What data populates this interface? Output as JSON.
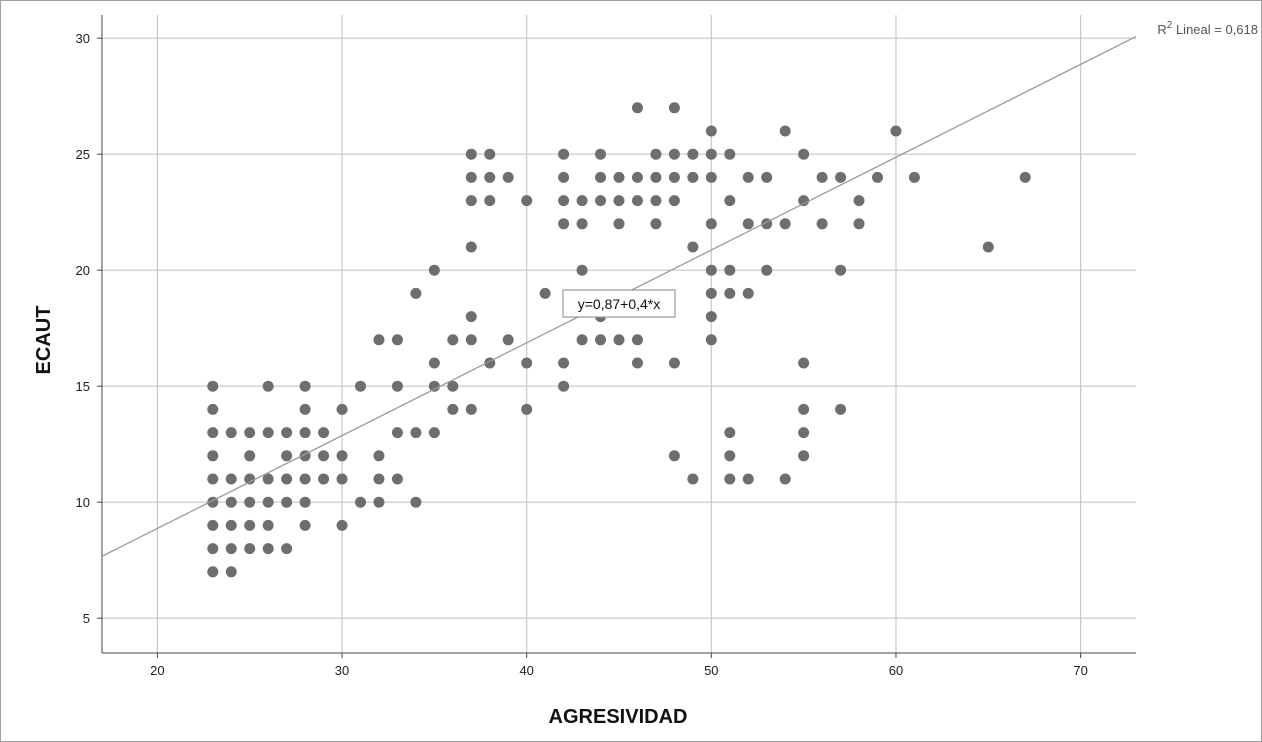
{
  "chart_data": {
    "type": "scatter",
    "xlabel": "AGRESIVIDAD",
    "ylabel": "ECAUT",
    "xlim": [
      17,
      73
    ],
    "ylim": [
      3.5,
      31
    ],
    "xticks": [
      20,
      30,
      40,
      50,
      60,
      70
    ],
    "yticks": [
      5,
      10,
      15,
      20,
      25,
      30
    ],
    "grid": true,
    "colors": {
      "points": "#6e6e6e",
      "line": "#9a9a9a",
      "grid": "#c8c8c8"
    },
    "fit_line": {
      "intercept": 0.87,
      "slope": 0.4
    },
    "equation_label": "y=0,87+0,4*x",
    "r2_label": {
      "prefix": "R",
      "sup": "2",
      "rest": " Lineal = 0,618"
    },
    "points": [
      [
        23,
        15
      ],
      [
        23,
        14
      ],
      [
        23,
        13
      ],
      [
        23,
        12
      ],
      [
        23,
        11
      ],
      [
        23,
        10
      ],
      [
        23,
        9
      ],
      [
        23,
        8
      ],
      [
        23,
        7
      ],
      [
        24,
        13
      ],
      [
        24,
        11
      ],
      [
        24,
        10
      ],
      [
        24,
        9
      ],
      [
        24,
        8
      ],
      [
        24,
        7
      ],
      [
        25,
        13
      ],
      [
        25,
        12
      ],
      [
        25,
        11
      ],
      [
        25,
        10
      ],
      [
        25,
        9
      ],
      [
        25,
        8
      ],
      [
        26,
        15
      ],
      [
        26,
        13
      ],
      [
        26,
        11
      ],
      [
        26,
        10
      ],
      [
        26,
        9
      ],
      [
        26,
        8
      ],
      [
        27,
        13
      ],
      [
        27,
        12
      ],
      [
        27,
        11
      ],
      [
        27,
        10
      ],
      [
        27,
        8
      ],
      [
        28,
        15
      ],
      [
        28,
        14
      ],
      [
        28,
        13
      ],
      [
        28,
        12
      ],
      [
        28,
        11
      ],
      [
        28,
        10
      ],
      [
        28,
        9
      ],
      [
        29,
        13
      ],
      [
        29,
        12
      ],
      [
        29,
        11
      ],
      [
        30,
        14
      ],
      [
        30,
        12
      ],
      [
        30,
        11
      ],
      [
        30,
        9
      ],
      [
        31,
        15
      ],
      [
        31,
        10
      ],
      [
        32,
        17
      ],
      [
        32,
        12
      ],
      [
        32,
        11
      ],
      [
        32,
        10
      ],
      [
        33,
        17
      ],
      [
        33,
        15
      ],
      [
        33,
        13
      ],
      [
        33,
        11
      ],
      [
        34,
        19
      ],
      [
        34,
        13
      ],
      [
        34,
        10
      ],
      [
        35,
        20
      ],
      [
        35,
        16
      ],
      [
        35,
        15
      ],
      [
        35,
        13
      ],
      [
        36,
        17
      ],
      [
        36,
        15
      ],
      [
        36,
        14
      ],
      [
        37,
        25
      ],
      [
        37,
        24
      ],
      [
        37,
        23
      ],
      [
        37,
        21
      ],
      [
        37,
        18
      ],
      [
        37,
        17
      ],
      [
        37,
        14
      ],
      [
        38,
        25
      ],
      [
        38,
        24
      ],
      [
        38,
        23
      ],
      [
        38,
        16
      ],
      [
        39,
        24
      ],
      [
        39,
        17
      ],
      [
        40,
        23
      ],
      [
        40,
        16
      ],
      [
        40,
        14
      ],
      [
        41,
        19
      ],
      [
        42,
        25
      ],
      [
        42,
        24
      ],
      [
        42,
        23
      ],
      [
        42,
        22
      ],
      [
        42,
        16
      ],
      [
        42,
        15
      ],
      [
        43,
        23
      ],
      [
        43,
        22
      ],
      [
        43,
        20
      ],
      [
        43,
        17
      ],
      [
        44,
        25
      ],
      [
        44,
        24
      ],
      [
        44,
        23
      ],
      [
        44,
        18
      ],
      [
        44,
        17
      ],
      [
        45,
        24
      ],
      [
        45,
        23
      ],
      [
        45,
        22
      ],
      [
        45,
        17
      ],
      [
        46,
        27
      ],
      [
        46,
        24
      ],
      [
        46,
        23
      ],
      [
        46,
        17
      ],
      [
        46,
        16
      ],
      [
        47,
        25
      ],
      [
        47,
        24
      ],
      [
        47,
        23
      ],
      [
        47,
        22
      ],
      [
        48,
        27
      ],
      [
        48,
        25
      ],
      [
        48,
        24
      ],
      [
        48,
        23
      ],
      [
        48,
        16
      ],
      [
        48,
        12
      ],
      [
        49,
        25
      ],
      [
        49,
        24
      ],
      [
        49,
        21
      ],
      [
        49,
        11
      ],
      [
        50,
        26
      ],
      [
        50,
        25
      ],
      [
        50,
        24
      ],
      [
        50,
        22
      ],
      [
        50,
        20
      ],
      [
        50,
        19
      ],
      [
        50,
        18
      ],
      [
        50,
        17
      ],
      [
        51,
        25
      ],
      [
        51,
        23
      ],
      [
        51,
        20
      ],
      [
        51,
        19
      ],
      [
        51,
        13
      ],
      [
        51,
        12
      ],
      [
        51,
        11
      ],
      [
        52,
        24
      ],
      [
        52,
        22
      ],
      [
        52,
        19
      ],
      [
        52,
        11
      ],
      [
        53,
        24
      ],
      [
        53,
        22
      ],
      [
        53,
        20
      ],
      [
        54,
        26
      ],
      [
        54,
        22
      ],
      [
        54,
        11
      ],
      [
        55,
        25
      ],
      [
        55,
        23
      ],
      [
        55,
        16
      ],
      [
        55,
        14
      ],
      [
        55,
        13
      ],
      [
        55,
        12
      ],
      [
        56,
        24
      ],
      [
        56,
        22
      ],
      [
        57,
        24
      ],
      [
        57,
        20
      ],
      [
        57,
        14
      ],
      [
        58,
        23
      ],
      [
        58,
        22
      ],
      [
        59,
        24
      ],
      [
        60,
        26
      ],
      [
        61,
        24
      ],
      [
        65,
        21
      ],
      [
        67,
        24
      ]
    ]
  }
}
